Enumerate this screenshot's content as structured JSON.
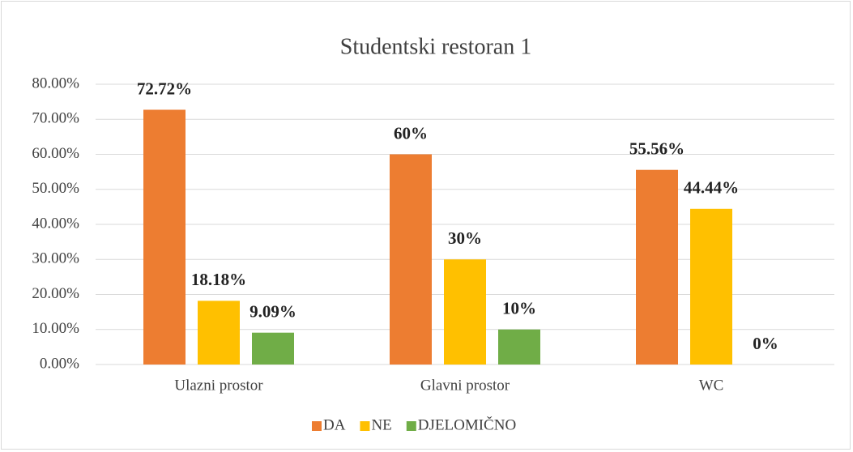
{
  "chart_data": {
    "type": "bar",
    "title": "Studentski restoran 1",
    "categories": [
      "Ulazni prostor",
      "Glavni prostor",
      "WC"
    ],
    "series": [
      {
        "name": "DA",
        "color": "#ed7d31",
        "values": [
          72.72,
          60,
          55.56
        ],
        "value_labels": [
          "72.72%",
          "60%",
          "55.56%"
        ]
      },
      {
        "name": "NE",
        "color": "#ffc000",
        "values": [
          18.18,
          30,
          44.44
        ],
        "value_labels": [
          "18.18%",
          "30%",
          "44.44%"
        ]
      },
      {
        "name": "DJELOMIČNO",
        "color": "#70ad47",
        "values": [
          9.09,
          10,
          0
        ],
        "value_labels": [
          "9.09%",
          "10%",
          "0%"
        ]
      }
    ],
    "ylim": [
      0,
      80
    ],
    "yticks": [
      {
        "value": 0,
        "label": "0.00%"
      },
      {
        "value": 10,
        "label": "10.00%"
      },
      {
        "value": 20,
        "label": "20.00%"
      },
      {
        "value": 30,
        "label": "30.00%"
      },
      {
        "value": 40,
        "label": "40.00%"
      },
      {
        "value": 50,
        "label": "50.00%"
      },
      {
        "value": 60,
        "label": "60.00%"
      },
      {
        "value": 70,
        "label": "70.00%"
      },
      {
        "value": 80,
        "label": "80.00%"
      }
    ],
    "grid": true,
    "legend": "bottom"
  }
}
